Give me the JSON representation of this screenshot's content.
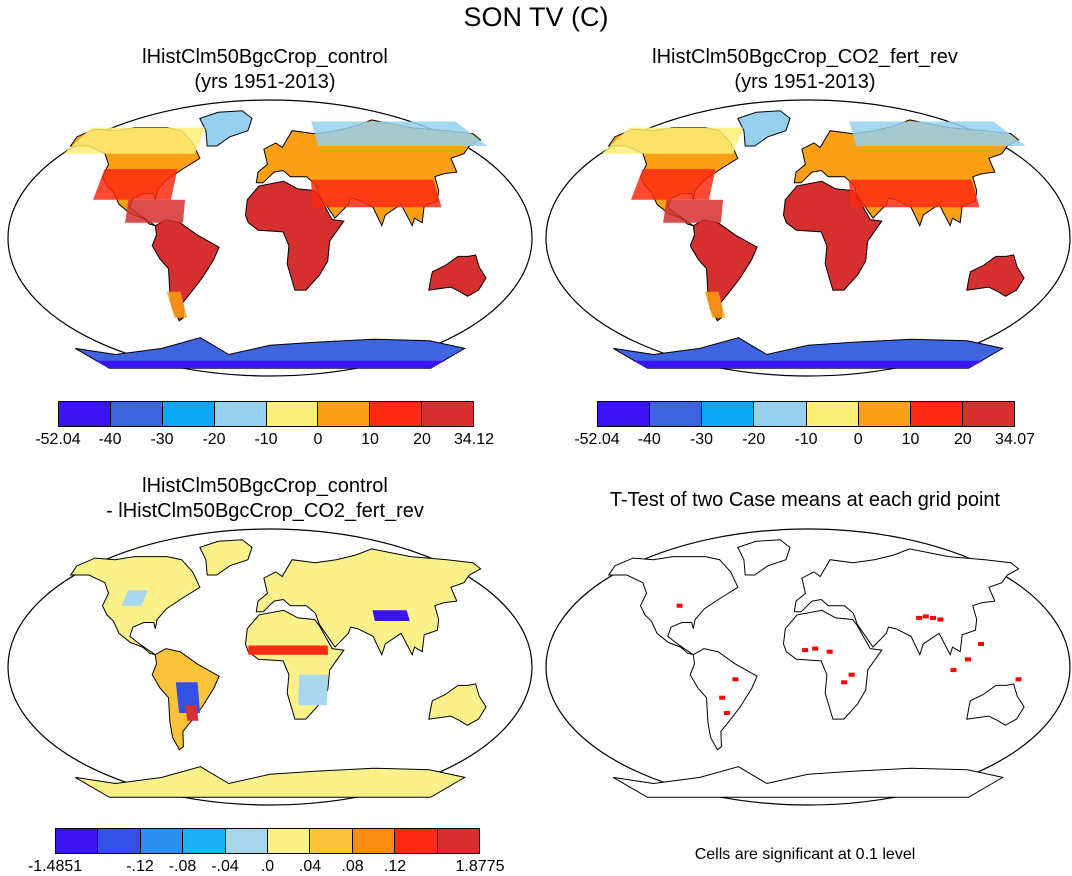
{
  "main_title": "SON TV (C)",
  "panels": [
    {
      "line1": "lHistClm50BgcCrop_control",
      "line2": "(yrs 1951-2013)"
    },
    {
      "line1": "lHistClm50BgcCrop_CO2_fert_rev",
      "line2": "(yrs 1951-2013)"
    },
    {
      "line1": "lHistClm50BgcCrop_control",
      "line2": "- lHistClm50BgcCrop_CO2_fert_rev"
    },
    {
      "line1": "T-Test of two Case means at each grid point"
    }
  ],
  "colorbar1": {
    "colors": [
      "#3b14f5",
      "#3f64e0",
      "#0aa9f5",
      "#97d0ee",
      "#fbee77",
      "#fb9f14",
      "#fc2a10",
      "#d62f2f"
    ],
    "labels": [
      "-52.04",
      "-40",
      "-30",
      "-20",
      "-10",
      "0",
      "10",
      "20",
      "34.12"
    ]
  },
  "colorbar2": {
    "colors": [
      "#3b14f5",
      "#3f64e0",
      "#0aa9f5",
      "#97d0ee",
      "#fbee77",
      "#fb9f14",
      "#fc2a10",
      "#d62f2f"
    ],
    "labels": [
      "-52.04",
      "-40",
      "-30",
      "-20",
      "-10",
      "0",
      "10",
      "20",
      "34.07"
    ]
  },
  "colorbar3": {
    "colors": [
      "#3b14f5",
      "#3451e6",
      "#2e8ff3",
      "#1eb2f8",
      "#a6d7ee",
      "#fbf18a",
      "#fbc33a",
      "#fb8d14",
      "#fb2a10",
      "#d62f2f"
    ],
    "labels": [
      "-1.4851",
      "-.12",
      "-.08",
      "-.04",
      ".0",
      ".04",
      ".08",
      ".12",
      "1.8775"
    ]
  },
  "significance_note": "Cells are significant at 0.1 level",
  "map_colors": {
    "ocean": "#ffffff",
    "coast": "#000000",
    "sig_cells": "#ff0000"
  }
}
